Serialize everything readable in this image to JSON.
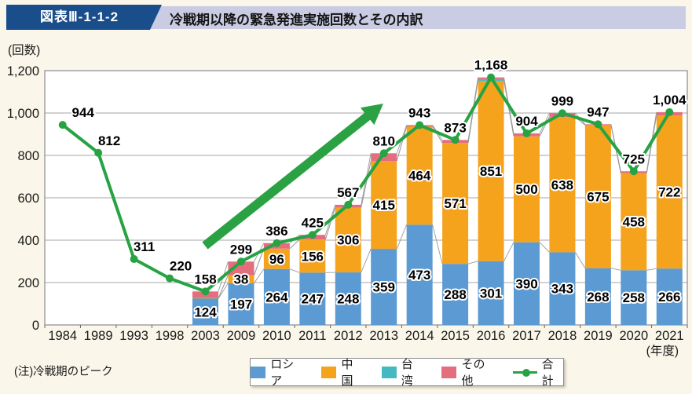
{
  "header": {
    "figure_label": "図表Ⅲ-1-1-2",
    "title": "冷戦期以降の緊急発進実施回数とその内訳"
  },
  "note": "(注)冷戦期のピーク",
  "colors": {
    "background": "#faf6e9",
    "header_strip": "#c9cce3",
    "header_box": "#1a4e8b",
    "plot_background": "#ffffff",
    "grid": "#a6a6a6",
    "border": "#8c8c8c",
    "connector": "#9a9a9a",
    "arrow": "#2aa244"
  },
  "chart_data": {
    "type": "bar",
    "subtype": "stacked-bars-with-total-line",
    "title": "冷戦期以降の緊急発進実施回数とその内訳",
    "y_unit_label": "(回数)",
    "x_unit_label": "(年度)",
    "ylim": [
      0,
      1200
    ],
    "ytick_interval": 200,
    "grid": true,
    "legend_position": "bottom",
    "categories": [
      "1984",
      "1989",
      "1993",
      "1998",
      "2003",
      "2009",
      "2010",
      "2011",
      "2012",
      "2013",
      "2014",
      "2015",
      "2016",
      "2017",
      "2018",
      "2019",
      "2020",
      "2021"
    ],
    "series": [
      {
        "name": "ロシア",
        "color": "#5b9ad2",
        "values": [
          null,
          null,
          null,
          null,
          124,
          197,
          264,
          247,
          248,
          359,
          473,
          288,
          301,
          390,
          343,
          268,
          258,
          266
        ]
      },
      {
        "name": "中国",
        "color": "#f5a31d",
        "values": [
          null,
          null,
          null,
          null,
          2,
          38,
          96,
          156,
          306,
          415,
          464,
          571,
          851,
          500,
          638,
          675,
          458,
          722
        ]
      },
      {
        "name": "台湾",
        "color": "#45b9c2",
        "values": [
          null,
          null,
          null,
          null,
          1,
          0,
          0,
          0,
          0,
          0,
          0,
          0,
          8,
          0,
          0,
          0,
          0,
          0
        ]
      },
      {
        "name": "その他",
        "color": "#e46e7e",
        "values": [
          null,
          null,
          null,
          null,
          31,
          64,
          26,
          22,
          13,
          36,
          6,
          14,
          8,
          14,
          18,
          4,
          9,
          16
        ]
      }
    ],
    "total_series": {
      "name": "合計",
      "color": "#27a343",
      "values": [
        944,
        812,
        311,
        220,
        158,
        299,
        386,
        425,
        567,
        810,
        943,
        873,
        1168,
        904,
        999,
        947,
        725,
        1004
      ]
    },
    "annotations": [
      {
        "type": "arrow",
        "direction": "up-right",
        "meaning": "increasing trend"
      }
    ]
  }
}
